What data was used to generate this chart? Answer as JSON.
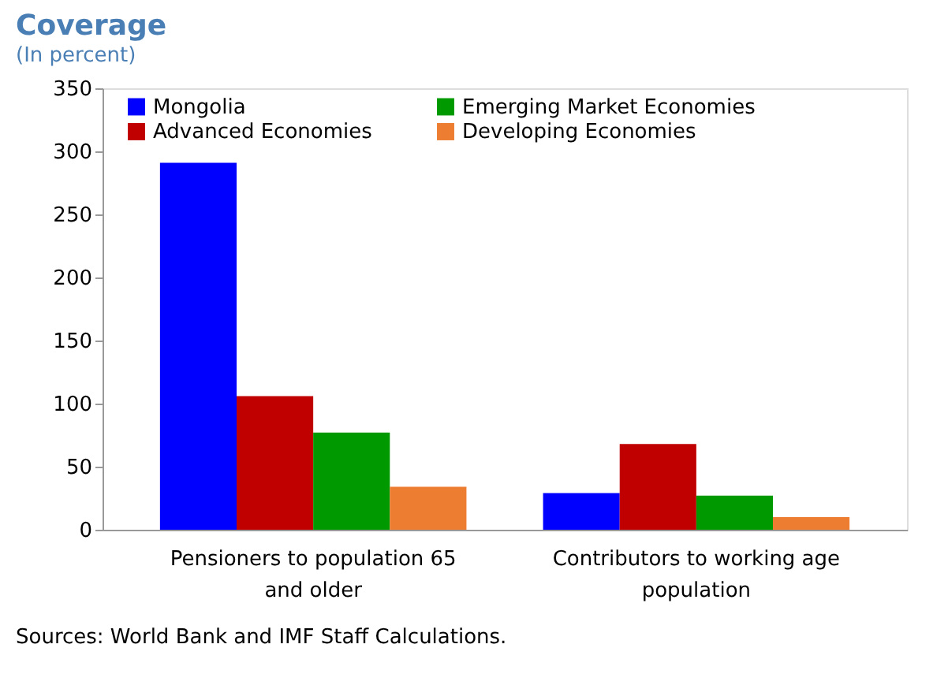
{
  "chart_data": {
    "type": "bar",
    "title": "Coverage",
    "subtitle": "(In percent)",
    "categories": [
      "Pensioners to population 65 and older",
      "Contributors to working age population"
    ],
    "series": [
      {
        "name": "Mongolia",
        "color": "#0000ff",
        "values": [
          291,
          29
        ]
      },
      {
        "name": "Advanced Economies",
        "color": "#c00000",
        "values": [
          106,
          68
        ]
      },
      {
        "name": "Emerging Market Economies",
        "color": "#009900",
        "values": [
          77,
          27
        ]
      },
      {
        "name": "Developing Economies",
        "color": "#ed7d31",
        "values": [
          34,
          10
        ]
      }
    ],
    "ylim": [
      0,
      350
    ],
    "yticks": [
      0,
      50,
      100,
      150,
      200,
      250,
      300,
      350
    ],
    "grid": false,
    "legend": "top",
    "annotations": [
      "Sources: World Bank and IMF Staff Calculations."
    ]
  }
}
